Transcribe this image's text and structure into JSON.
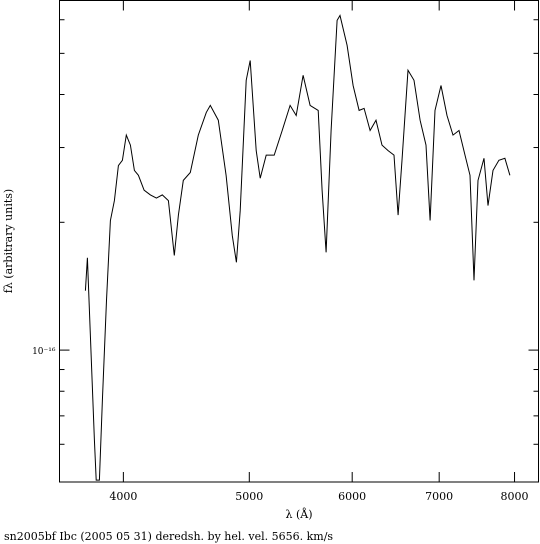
{
  "chart_data": {
    "type": "line",
    "caption": "sn2005bf Ibc (2005 05 31) deredsh. by hel. vel.  5656. km/s",
    "xlabel": "λ (Å)",
    "ylabel": "fλ (arbitrary units)",
    "xlog": true,
    "ylog": true,
    "xlim": [
      3572,
      8347
    ],
    "ylim": [
      4.89e-17,
      6.66e-16
    ],
    "xticks": [
      4000,
      5000,
      6000,
      7000,
      8000
    ],
    "yticks": [
      {
        "value": 1e-16,
        "label": "10⁻¹⁶"
      }
    ],
    "yminor": [
      6e-17,
      7e-17,
      8e-17,
      9e-17,
      2e-16,
      3e-16,
      4e-16,
      5e-16,
      6e-16
    ],
    "series": [
      {
        "color": "#000000",
        "x": [
          3740,
          3753,
          3772,
          3800,
          3812,
          3834,
          3854,
          3882,
          3909,
          3937,
          3965,
          3993,
          4021,
          4050,
          4079,
          4108,
          4150,
          4196,
          4241,
          4286,
          4332,
          4378,
          4410,
          4448,
          4504,
          4568,
          4633,
          4666,
          4733,
          4799,
          4852,
          4887,
          4920,
          4973,
          5008,
          5062,
          5098,
          5152,
          5226,
          5300,
          5375,
          5433,
          5500,
          5569,
          5649,
          5689,
          5729,
          5780,
          5842,
          5872,
          5946,
          6010,
          6074,
          6128,
          6193,
          6259,
          6326,
          6394,
          6462,
          6508,
          6554,
          6624,
          6695,
          6767,
          6839,
          6888,
          6948,
          7022,
          7098,
          7174,
          7250,
          7328,
          7393,
          7445,
          7498,
          7578,
          7632,
          7700,
          7782,
          7864,
          7934
        ],
        "values": [
          1.38e-16,
          1.65e-16,
          1.11e-16,
          6.14e-17,
          4.94e-17,
          4.94e-17,
          7.63e-17,
          1.31e-16,
          2.02e-16,
          2.25e-16,
          2.72e-16,
          2.8e-16,
          3.21e-16,
          3.04e-16,
          2.65e-16,
          2.58e-16,
          2.38e-16,
          2.32e-16,
          2.28e-16,
          2.32e-16,
          2.25e-16,
          1.67e-16,
          2.08e-16,
          2.51e-16,
          2.62e-16,
          3.21e-16,
          3.63e-16,
          3.77e-16,
          3.48e-16,
          2.58e-16,
          1.86e-16,
          1.61e-16,
          2.13e-16,
          4.32e-16,
          4.81e-16,
          2.95e-16,
          2.54e-16,
          2.88e-16,
          2.88e-16,
          3.29e-16,
          3.77e-16,
          3.57e-16,
          4.44e-16,
          3.77e-16,
          3.67e-16,
          2.38e-16,
          1.7e-16,
          3.29e-16,
          5.98e-16,
          6.14e-16,
          5.22e-16,
          4.2e-16,
          3.67e-16,
          3.71e-16,
          3.29e-16,
          3.48e-16,
          3.04e-16,
          2.95e-16,
          2.88e-16,
          2.08e-16,
          2.8e-16,
          4.56e-16,
          4.32e-16,
          3.48e-16,
          3.04e-16,
          2.02e-16,
          3.67e-16,
          4.2e-16,
          3.57e-16,
          3.21e-16,
          3.29e-16,
          2.88e-16,
          2.58e-16,
          1.46e-16,
          2.51e-16,
          2.83e-16,
          2.19e-16,
          2.65e-16,
          2.8e-16,
          2.83e-16,
          2.58e-16
        ]
      }
    ]
  }
}
